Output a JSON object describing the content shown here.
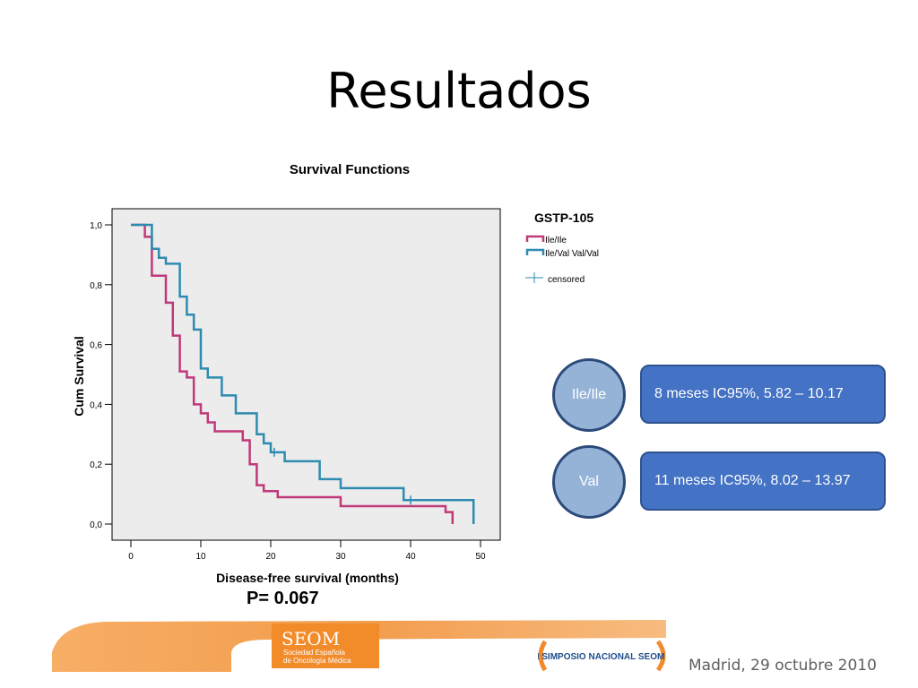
{
  "slide": {
    "title": "Resultados",
    "p_value": "P= 0.067",
    "footer_date": "Madrid, 29 octubre 2010",
    "logo_seom": "SEOM",
    "logo_seom_sub1": "Sociedad Española",
    "logo_seom_sub2": "de Oncología Médica",
    "logo_symposio": "I SIMPOSIO NACIONAL SEOM"
  },
  "groups": [
    {
      "circle_label": "Ile/Ile",
      "result": "8 meses IC95%, 5.82 – 10.17"
    },
    {
      "circle_label": "Val",
      "result": "11 meses IC95%, 8.02 – 13.97"
    }
  ],
  "chart_data": {
    "type": "line",
    "title": "Survival Functions",
    "xlabel": "Disease-free survival (months)",
    "ylabel": "Cum Survival",
    "xlim": [
      0,
      50
    ],
    "ylim": [
      0,
      1
    ],
    "xticks": [
      "0",
      "10",
      "20",
      "30",
      "40",
      "50"
    ],
    "yticks": [
      "0,0",
      "0,2",
      "0,4",
      "0,6",
      "0,8",
      "1,0"
    ],
    "legend_title": "GSTP-105",
    "legend_position": "right",
    "censored_label": "censored",
    "colors": {
      "ile_ile": "#c0397a",
      "val": "#2e8bb0"
    },
    "series": [
      {
        "name": "Ile/Ile",
        "color": "#c0397a",
        "step_x": [
          0,
          2,
          3,
          5,
          6,
          7,
          8,
          9,
          10,
          11,
          12,
          16,
          17,
          18,
          19,
          21,
          30,
          45,
          46
        ],
        "step_y": [
          1.0,
          0.96,
          0.83,
          0.74,
          0.63,
          0.51,
          0.49,
          0.4,
          0.37,
          0.34,
          0.31,
          0.28,
          0.2,
          0.13,
          0.11,
          0.09,
          0.06,
          0.04,
          0.0
        ],
        "end_x": 46,
        "censored": []
      },
      {
        "name": "Ile/Val Val/Val",
        "color": "#2e8bb0",
        "step_x": [
          0,
          3,
          4,
          5,
          7,
          8,
          9,
          10,
          11,
          13,
          15,
          18,
          19,
          20,
          22,
          27,
          30,
          39,
          40,
          49
        ],
        "step_y": [
          1.0,
          0.92,
          0.89,
          0.87,
          0.76,
          0.7,
          0.65,
          0.52,
          0.49,
          0.43,
          0.37,
          0.3,
          0.27,
          0.24,
          0.21,
          0.15,
          0.12,
          0.08,
          0.08,
          0.0
        ],
        "end_x": 49,
        "censored": [
          20.5,
          40
        ]
      }
    ]
  }
}
